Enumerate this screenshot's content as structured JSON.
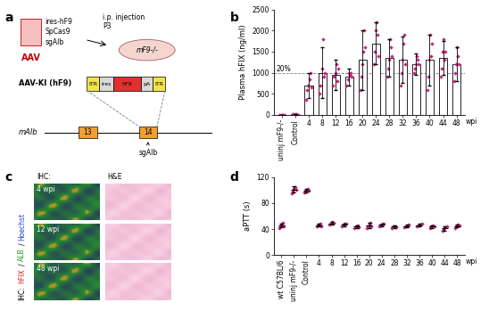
{
  "panel_labels": [
    "a",
    "b",
    "c",
    "d"
  ],
  "schematic": {
    "vector": {
      "label": "AAV",
      "items": [
        "ires-hF9",
        "SpCas9",
        "sgAlb"
      ]
    },
    "injection": [
      "i.p. injection",
      "P3"
    ],
    "mouse": "mF9-/-",
    "construct": {
      "title": "AAV-KI (hF9)",
      "elements": [
        "ITR",
        "ires",
        "hF9",
        "pA",
        "ITR"
      ]
    },
    "locus": {
      "gene": "mAlb",
      "exons": [
        "13",
        "14"
      ],
      "guide": "sgAlb"
    }
  },
  "images": {
    "column_headers": [
      "IHC:",
      "H&E"
    ],
    "row_labels": [
      "4 wpi",
      "12 wpi",
      "48 wpi"
    ],
    "side_label_parts": [
      {
        "text": "IHC:",
        "color": "#000000"
      },
      {
        "text": "hFIX",
        "color": "#e02020"
      },
      {
        "text": "/",
        "color": "#000000"
      },
      {
        "text": "ALB",
        "color": "#20a020"
      },
      {
        "text": "/",
        "color": "#000000"
      },
      {
        "text": "Hoechst",
        "color": "#2040e0"
      }
    ]
  },
  "chart_data": [
    {
      "type": "bar",
      "y_label": "Plasma hFIX (ng/ml)",
      "x_label": "wpi",
      "categories": [
        "uninj mF9-/-",
        "Control",
        "4",
        "8",
        "12",
        "16",
        "20",
        "24",
        "28",
        "32",
        "36",
        "40",
        "44",
        "48"
      ],
      "values": [
        0,
        10,
        700,
        1000,
        950,
        900,
        1300,
        1700,
        1350,
        1300,
        1200,
        1300,
        1350,
        1200
      ],
      "errors": [
        0,
        10,
        300,
        600,
        350,
        200,
        700,
        500,
        450,
        550,
        250,
        600,
        400,
        400
      ],
      "points": [
        [
          0,
          0,
          0,
          0,
          0
        ],
        [
          10,
          20,
          0,
          15,
          5
        ],
        [
          350,
          600,
          700,
          850,
          1000,
          650
        ],
        [
          500,
          700,
          1100,
          1800,
          900,
          1000
        ],
        [
          700,
          900,
          1000,
          1200,
          800,
          1100
        ],
        [
          700,
          850,
          1000,
          950,
          1000,
          900
        ],
        [
          600,
          900,
          1200,
          1500,
          2000,
          1600
        ],
        [
          1200,
          1500,
          2000,
          2200,
          1900,
          1400
        ],
        [
          900,
          1100,
          1300,
          1800,
          1600,
          1400
        ],
        [
          700,
          1000,
          1300,
          1700,
          1900,
          1200
        ],
        [
          1000,
          1100,
          1200,
          1400,
          1300,
          1200
        ],
        [
          600,
          900,
          1300,
          1900,
          1400,
          1700
        ],
        [
          900,
          1100,
          1500,
          1800,
          1300,
          1500
        ],
        [
          800,
          1000,
          1200,
          1600,
          1400,
          1200
        ]
      ],
      "reference_line": {
        "value": 1000,
        "label": "20%"
      },
      "color": "#c2237d",
      "marker": "diamond",
      "ylim": [
        0,
        2500
      ],
      "yticks": [
        0,
        500,
        1000,
        1500,
        2000,
        2500
      ]
    },
    {
      "type": "scatter",
      "y_label": "aPTT (s)",
      "x_label": "wpi",
      "categories": [
        "wt C57BL/6",
        "uninj mF9-/-",
        "Control",
        "4",
        "8",
        "12",
        "16",
        "20",
        "24",
        "28",
        "32",
        "36",
        "40",
        "44",
        "48"
      ],
      "values": [
        46,
        101,
        99,
        46,
        49,
        47,
        44,
        46,
        47,
        44,
        45,
        46,
        44,
        41,
        45
      ],
      "errors": [
        3,
        5,
        3,
        2,
        2,
        2,
        2,
        4,
        2,
        2,
        2,
        2,
        2,
        3,
        2
      ],
      "points": [
        [
          42,
          44,
          46,
          48,
          50,
          45
        ],
        [
          95,
          98,
          102,
          105,
          100
        ],
        [
          96,
          98,
          100,
          102,
          99
        ],
        [
          44,
          46,
          47,
          49,
          45
        ],
        [
          47,
          49,
          51,
          50
        ],
        [
          45,
          47,
          48,
          49
        ],
        [
          42,
          44,
          46,
          43
        ],
        [
          42,
          45,
          48,
          50,
          44
        ],
        [
          44,
          46,
          48,
          49
        ],
        [
          42,
          44,
          45,
          43
        ],
        [
          43,
          45,
          46,
          47
        ],
        [
          44,
          46,
          47,
          48
        ],
        [
          42,
          44,
          46,
          45
        ],
        [
          38,
          40,
          43,
          44
        ],
        [
          42,
          44,
          47,
          46
        ]
      ],
      "color": "#c2237d",
      "marker": "diamond",
      "ylim": [
        0,
        120
      ],
      "yticks": [
        0,
        40,
        80,
        120
      ]
    }
  ]
}
